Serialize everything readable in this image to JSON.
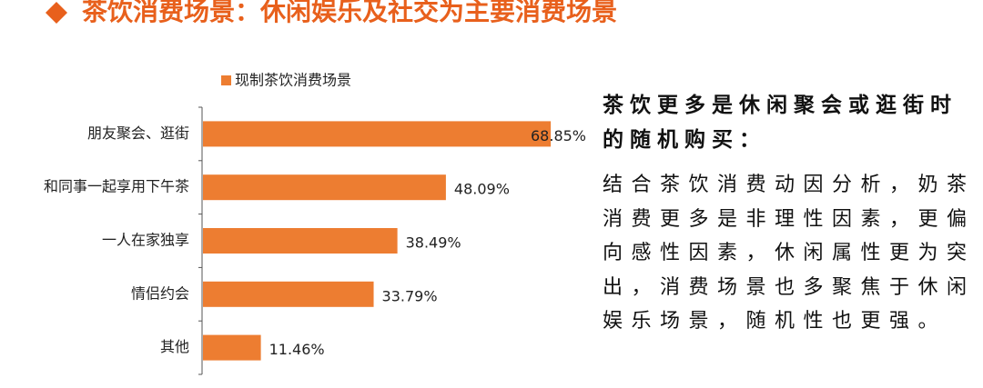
{
  "title": "茶饮消费场景：休闲娱乐及社交为主要消费场景",
  "chart_data": {
    "type": "hbar",
    "categories": [
      "朋友聚会、逛街",
      "和同事一起享用下午茶",
      "一人在家独享",
      "情侣约会",
      "其他"
    ],
    "series": [
      {
        "name": "现制茶饮消费场景",
        "color": "#ED7D31",
        "values": [
          68.85,
          48.09,
          38.49,
          33.79,
          11.46
        ],
        "value_labels": [
          "68.85%",
          "48.09%",
          "38.49%",
          "33.79%",
          "11.46%"
        ]
      }
    ]
  },
  "side_note": {
    "heading": "茶饮更多是休闲聚会或逛街时的随机购买：",
    "body": "结合茶饮消费动因分析，奶茶消费更多是非理性因素，更偏向感性因素，休闲属性更为突出，消费场景也多聚焦于休闲娱乐场景，随机性也更强。"
  }
}
